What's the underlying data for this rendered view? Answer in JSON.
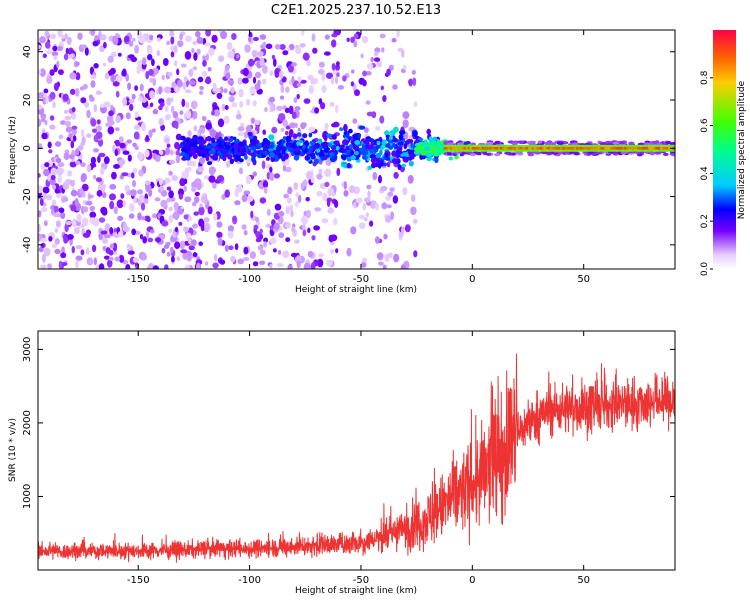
{
  "chart_data": [
    {
      "type": "heatmap",
      "title": "C2E1.2025.237.10.52.E13",
      "xlabel": "Height of straight line (km)",
      "ylabel": "Frequency (Hz)",
      "xlim": [
        -195,
        91
      ],
      "ylim": [
        -50,
        49
      ],
      "xticks": [
        -150,
        -100,
        -50,
        0,
        50
      ],
      "xtick_labels": [
        "-150",
        "-100",
        "-50",
        "0",
        "50"
      ],
      "yticks": [
        -40,
        -20,
        0,
        20,
        40
      ],
      "ytick_labels": [
        "-40",
        "-20",
        "0",
        "20",
        "40"
      ],
      "description_points": [
        {
          "x": -180,
          "y": 30,
          "v": 0.18
        },
        {
          "x": -150,
          "y": -20,
          "v": 0.15
        },
        {
          "x": -120,
          "y": 10,
          "v": 0.15
        },
        {
          "x": -95,
          "y": 2,
          "v": 0.28
        },
        {
          "x": -85,
          "y": 5,
          "v": 0.3
        },
        {
          "x": -55,
          "y": 0,
          "v": 0.32
        },
        {
          "x": -30,
          "y": 7,
          "v": 0.35
        },
        {
          "x": -20,
          "y": 1,
          "v": 0.45
        },
        {
          "x": -10,
          "y": 0,
          "v": 0.55
        },
        {
          "x": 20,
          "y": 0,
          "v": 0.75
        },
        {
          "x": 50,
          "y": 0,
          "v": 0.85
        },
        {
          "x": 85,
          "y": 0,
          "v": 0.85
        }
      ],
      "colorbar": {
        "label": "Normalized spectral amplitude",
        "range": [
          0,
          1
        ],
        "ticks": [
          0.0,
          0.2,
          0.4,
          0.6,
          0.8
        ],
        "tick_labels": [
          "0.0",
          "0.2",
          "0.4",
          "0.6",
          "0.8"
        ]
      }
    },
    {
      "type": "line",
      "title": "",
      "xlabel": "Height of straight line (km)",
      "ylabel": "SNR (10 * v/v)",
      "xlim": [
        -195,
        91
      ],
      "ylim": [
        0,
        3250
      ],
      "xticks": [
        -150,
        -100,
        -50,
        0,
        50
      ],
      "xtick_labels": [
        "-150",
        "-100",
        "-50",
        "0",
        "50"
      ],
      "yticks": [
        1000,
        2000,
        3000
      ],
      "ytick_labels": [
        "1000",
        "2000",
        "3000"
      ],
      "series": [
        {
          "name": "SNR",
          "color": "#ee3333",
          "x": [
            -195,
            -150,
            -120,
            -100,
            -80,
            -60,
            -50,
            -40,
            -30,
            -20,
            -15,
            -10,
            -5,
            0,
            10,
            20,
            30,
            40,
            50,
            60,
            70,
            80,
            91
          ],
          "y": [
            250,
            260,
            280,
            290,
            320,
            350,
            380,
            450,
            550,
            700,
            800,
            950,
            1050,
            1150,
            1450,
            1850,
            2100,
            2200,
            2200,
            2230,
            2250,
            2280,
            2300
          ]
        }
      ]
    }
  ]
}
